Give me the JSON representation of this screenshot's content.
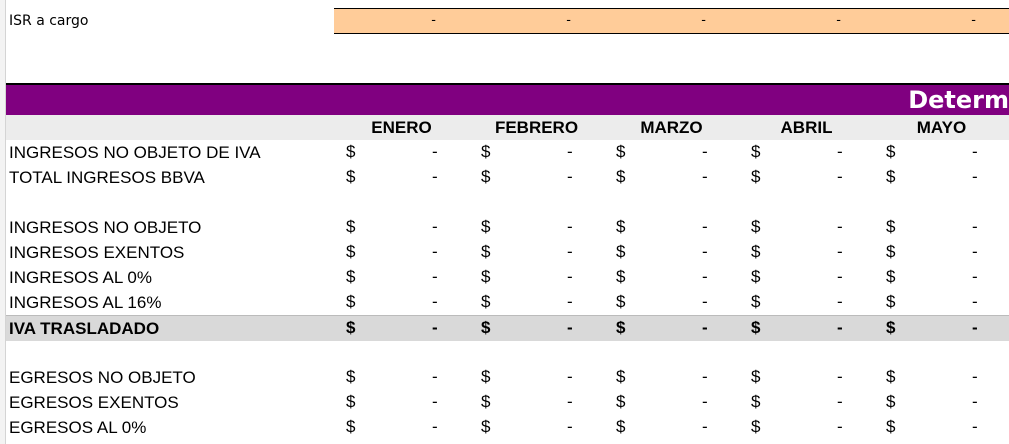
{
  "isr": {
    "label": "ISR a cargo",
    "values": [
      "-",
      "-",
      "-",
      "-",
      "-"
    ]
  },
  "banner": {
    "title": "Determ"
  },
  "months": [
    "ENERO",
    "FEBRERO",
    "MARZO",
    "ABRIL",
    "MAYO"
  ],
  "currency": "$",
  "empty": "-",
  "rows": [
    {
      "label": "INGRESOS NO OBJETO DE IVA"
    },
    {
      "label": "TOTAL INGRESOS BBVA"
    },
    {
      "label": ""
    },
    {
      "label": "INGRESOS NO OBJETO"
    },
    {
      "label": "INGRESOS EXENTOS"
    },
    {
      "label": "INGRESOS AL 0%"
    },
    {
      "label": "INGRESOS AL 16%"
    },
    {
      "label": "IVA TRASLADADO",
      "highlight": true
    },
    {
      "label": ""
    },
    {
      "label": "EGRESOS NO OBJETO"
    },
    {
      "label": "EGRESOS EXENTOS"
    },
    {
      "label": "EGRESOS AL 0%"
    }
  ],
  "colors": {
    "banner": "#800080",
    "isr_fill": "#ffcc99",
    "header_fill": "#ececec",
    "highlight_fill": "#d9d9d9"
  }
}
